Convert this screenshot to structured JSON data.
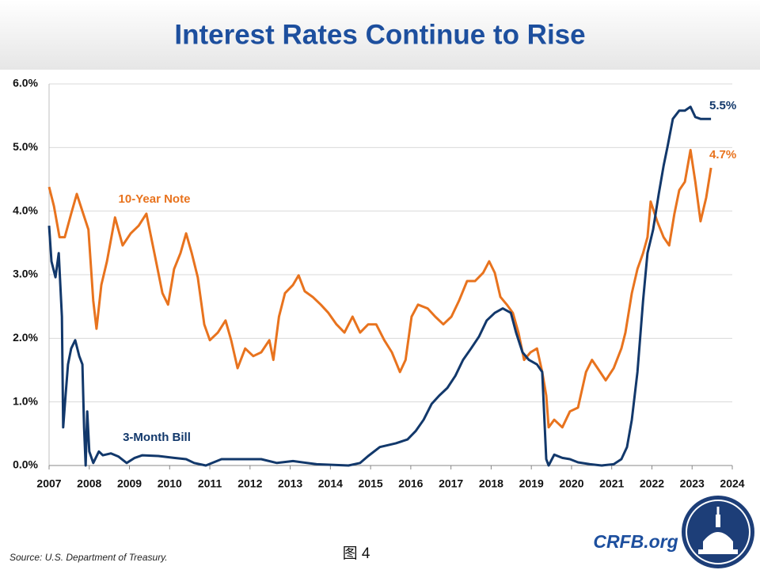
{
  "chart_data": {
    "type": "line",
    "title": "Interest Rates Continue to Rise",
    "source": "Source: U.S. Department of Treasury.",
    "figure_label": "图 4",
    "brand": "CRFB.org",
    "xlim": [
      2007,
      2024
    ],
    "xticks": [
      2007,
      2008,
      2009,
      2010,
      2011,
      2012,
      2013,
      2014,
      2015,
      2016,
      2017,
      2018,
      2019,
      2020,
      2021,
      2022,
      2023,
      2024
    ],
    "ylim": [
      0,
      6
    ],
    "yticks": [
      {
        "value": 0,
        "label": "0.0%"
      },
      {
        "value": 1,
        "label": "1.0%"
      },
      {
        "value": 2,
        "label": "2.0%"
      },
      {
        "value": 3,
        "label": "3.0%"
      },
      {
        "value": 4,
        "label": "4.0%"
      },
      {
        "value": 5,
        "label": "5.0%"
      },
      {
        "value": 6,
        "label": "6.0%"
      }
    ],
    "grid": true,
    "series": [
      {
        "name": "10-Year Note",
        "color": "#e8731e",
        "end_label": "4.7%",
        "x": [
          2007.0,
          2007.12,
          2007.26,
          2007.39,
          2007.55,
          2007.69,
          2007.85,
          2007.98,
          2008.1,
          2008.18,
          2008.3,
          2008.44,
          2008.64,
          2008.83,
          2009.03,
          2009.23,
          2009.42,
          2009.62,
          2009.82,
          2009.96,
          2010.11,
          2010.27,
          2010.41,
          2010.55,
          2010.7,
          2010.86,
          2011.0,
          2011.2,
          2011.39,
          2011.53,
          2011.69,
          2011.88,
          2012.08,
          2012.28,
          2012.48,
          2012.58,
          2012.72,
          2012.87,
          2013.07,
          2013.21,
          2013.36,
          2013.56,
          2013.76,
          2013.95,
          2014.15,
          2014.35,
          2014.55,
          2014.74,
          2014.94,
          2015.14,
          2015.34,
          2015.53,
          2015.73,
          2015.87,
          2016.02,
          2016.18,
          2016.42,
          2016.61,
          2016.81,
          2017.01,
          2017.2,
          2017.4,
          2017.6,
          2017.8,
          2017.95,
          2018.09,
          2018.23,
          2018.39,
          2018.54,
          2018.68,
          2018.82,
          2018.98,
          2019.14,
          2019.27,
          2019.37,
          2019.43,
          2019.57,
          2019.77,
          2019.96,
          2020.16,
          2020.36,
          2020.51,
          2020.65,
          2020.85,
          2021.05,
          2021.24,
          2021.34,
          2021.5,
          2021.64,
          2021.78,
          2021.89,
          2021.97,
          2022.13,
          2022.29,
          2022.43,
          2022.56,
          2022.68,
          2022.82,
          2022.96,
          2023.08,
          2023.21,
          2023.35,
          2023.47
        ],
        "values": [
          4.38,
          4.08,
          3.59,
          3.59,
          3.96,
          4.27,
          3.96,
          3.71,
          2.59,
          2.15,
          2.84,
          3.21,
          3.9,
          3.46,
          3.65,
          3.77,
          3.96,
          3.34,
          2.71,
          2.53,
          3.09,
          3.34,
          3.65,
          3.34,
          2.96,
          2.22,
          1.97,
          2.09,
          2.28,
          1.97,
          1.53,
          1.84,
          1.72,
          1.78,
          1.97,
          1.66,
          2.34,
          2.71,
          2.84,
          2.99,
          2.74,
          2.65,
          2.53,
          2.4,
          2.22,
          2.09,
          2.34,
          2.09,
          2.22,
          2.22,
          1.97,
          1.78,
          1.47,
          1.66,
          2.34,
          2.53,
          2.47,
          2.34,
          2.22,
          2.34,
          2.59,
          2.9,
          2.9,
          3.03,
          3.21,
          3.03,
          2.65,
          2.53,
          2.4,
          2.09,
          1.66,
          1.78,
          1.84,
          1.47,
          1.1,
          0.6,
          0.72,
          0.6,
          0.85,
          0.91,
          1.47,
          1.66,
          1.53,
          1.34,
          1.53,
          1.84,
          2.09,
          2.71,
          3.09,
          3.34,
          3.59,
          4.15,
          3.84,
          3.59,
          3.46,
          3.96,
          4.33,
          4.46,
          4.96,
          4.46,
          3.84,
          4.21,
          4.68
        ]
      },
      {
        "name": "3-Month Bill",
        "color": "#12386b",
        "end_label": "5.5%",
        "x": [
          2007.0,
          2007.06,
          2007.16,
          2007.24,
          2007.32,
          2007.35,
          2007.41,
          2007.47,
          2007.55,
          2007.65,
          2007.75,
          2007.83,
          2007.87,
          2007.91,
          2007.95,
          2008.0,
          2008.1,
          2008.24,
          2008.34,
          2008.54,
          2008.73,
          2008.93,
          2009.13,
          2009.32,
          2009.72,
          2010.11,
          2010.41,
          2010.61,
          2010.9,
          2011.29,
          2011.69,
          2012.28,
          2012.67,
          2013.07,
          2013.66,
          2014.45,
          2014.74,
          2014.94,
          2015.23,
          2015.63,
          2015.92,
          2016.12,
          2016.32,
          2016.52,
          2016.71,
          2016.91,
          2017.11,
          2017.3,
          2017.5,
          2017.7,
          2017.89,
          2018.09,
          2018.29,
          2018.49,
          2018.62,
          2018.78,
          2018.94,
          2019.14,
          2019.27,
          2019.37,
          2019.43,
          2019.57,
          2019.77,
          2019.96,
          2020.16,
          2020.46,
          2020.75,
          2021.05,
          2021.24,
          2021.38,
          2021.5,
          2021.64,
          2021.78,
          2021.89,
          2022.03,
          2022.17,
          2022.29,
          2022.39,
          2022.52,
          2022.68,
          2022.82,
          2022.96,
          2023.08,
          2023.21,
          2023.35,
          2023.47
        ],
        "values": [
          3.77,
          3.21,
          2.96,
          3.34,
          2.34,
          0.6,
          1.1,
          1.59,
          1.84,
          1.97,
          1.72,
          1.59,
          0.6,
          0,
          0.85,
          0.22,
          0.04,
          0.22,
          0.16,
          0.19,
          0.14,
          0.04,
          0.12,
          0.16,
          0.15,
          0.12,
          0.1,
          0.04,
          0,
          0.1,
          0.1,
          0.1,
          0.04,
          0.07,
          0.02,
          0,
          0.04,
          0.15,
          0.29,
          0.35,
          0.41,
          0.54,
          0.72,
          0.97,
          1.1,
          1.22,
          1.41,
          1.66,
          1.84,
          2.03,
          2.28,
          2.4,
          2.47,
          2.4,
          2.09,
          1.78,
          1.66,
          1.59,
          1.47,
          0.1,
          0,
          0.17,
          0.12,
          0.1,
          0.05,
          0.02,
          0,
          0.02,
          0.1,
          0.29,
          0.72,
          1.47,
          2.59,
          3.34,
          3.71,
          4.27,
          4.71,
          5.02,
          5.45,
          5.58,
          5.58,
          5.64,
          5.48,
          5.45,
          5.45,
          5.45
        ]
      }
    ]
  }
}
